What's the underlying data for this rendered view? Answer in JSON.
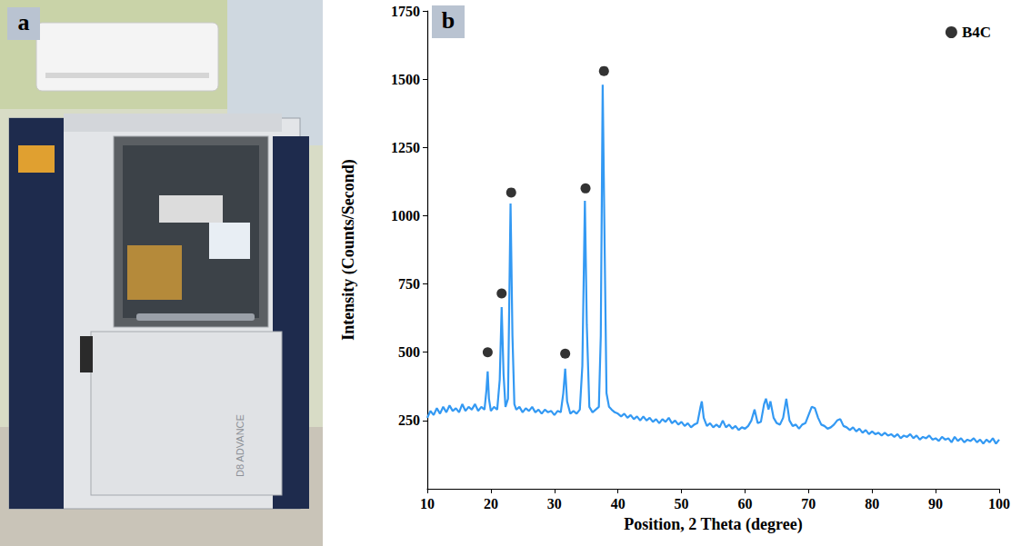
{
  "panels": [
    {
      "label": "a",
      "photo_text": "D8 ADVANCE"
    },
    {
      "label": "b"
    }
  ],
  "chart_data": {
    "type": "line",
    "x_label": "Position, 2 Theta (degree)",
    "y_label": "Intensity (Counts/Second)",
    "xlim": [
      10,
      100
    ],
    "xticks": [
      10,
      20,
      30,
      40,
      50,
      60,
      70,
      80,
      90,
      100
    ],
    "ylim": [
      0,
      1750
    ],
    "yticks": [
      250,
      500,
      750,
      1000,
      1250,
      1500,
      1750
    ],
    "grid": false,
    "legend": "upper right",
    "series": [
      {
        "type": "line",
        "color": "#3399f3",
        "line_style": "solid",
        "x": [
          10,
          10.5,
          11,
          11.5,
          12,
          12.5,
          13,
          13.5,
          14,
          14.5,
          15,
          15.5,
          16,
          16.5,
          17,
          17.5,
          18,
          18.5,
          19,
          19.3,
          19.5,
          19.7,
          20,
          20.5,
          21,
          21.4,
          21.7,
          22,
          22.3,
          22.7,
          23.1,
          23.4,
          23.7,
          24,
          24.5,
          25,
          25.5,
          26,
          26.5,
          27,
          27.5,
          28,
          28.5,
          29,
          29.5,
          30,
          30.5,
          31,
          31.4,
          31.7,
          32,
          32.5,
          33,
          33.5,
          34,
          34.4,
          34.8,
          35.1,
          35.5,
          36,
          36.5,
          37,
          37.3,
          37.6,
          37.9,
          38.2,
          38.6,
          39,
          39.5,
          40,
          40.5,
          41,
          41.5,
          42,
          42.5,
          43,
          43.5,
          44,
          44.5,
          45,
          45.5,
          46,
          46.5,
          47,
          47.5,
          48,
          48.5,
          49,
          49.5,
          50,
          50.5,
          51,
          51.5,
          52,
          52.5,
          53,
          53.2,
          53.5,
          54,
          54.5,
          55,
          55.5,
          56,
          56.5,
          57,
          57.5,
          58,
          58.5,
          59,
          59.5,
          60,
          60.5,
          61,
          61.5,
          62,
          62.5,
          63,
          63.3,
          63.7,
          64,
          64.5,
          65,
          65.5,
          66,
          66.5,
          67,
          67.5,
          68,
          68.5,
          69,
          69.5,
          70,
          70.5,
          71,
          71.5,
          72,
          72.5,
          73,
          73.5,
          74,
          74.5,
          75,
          75.5,
          76,
          76.5,
          77,
          77.5,
          78,
          78.5,
          79,
          79.5,
          80,
          80.5,
          81,
          81.5,
          82,
          82.5,
          83,
          83.5,
          84,
          84.5,
          85,
          85.5,
          86,
          86.5,
          87,
          87.5,
          88,
          88.5,
          89,
          89.5,
          90,
          90.5,
          91,
          91.5,
          92,
          92.5,
          93,
          93.5,
          94,
          94.5,
          95,
          95.5,
          96,
          96.5,
          97,
          97.5,
          98,
          98.5,
          99,
          99.5,
          100
        ],
        "values": [
          260,
          285,
          270,
          295,
          275,
          300,
          280,
          305,
          285,
          295,
          280,
          310,
          285,
          300,
          290,
          310,
          285,
          300,
          290,
          360,
          430,
          330,
          285,
          300,
          290,
          400,
          665,
          420,
          300,
          330,
          1045,
          560,
          310,
          290,
          300,
          280,
          295,
          285,
          300,
          280,
          290,
          275,
          290,
          280,
          285,
          270,
          285,
          280,
          350,
          440,
          320,
          275,
          285,
          275,
          290,
          450,
          1055,
          600,
          300,
          280,
          290,
          300,
          560,
          1480,
          900,
          350,
          300,
          290,
          280,
          275,
          265,
          275,
          260,
          270,
          255,
          265,
          250,
          265,
          250,
          260,
          245,
          255,
          240,
          255,
          245,
          260,
          240,
          250,
          235,
          245,
          230,
          240,
          225,
          235,
          240,
          300,
          320,
          260,
          230,
          240,
          225,
          235,
          225,
          250,
          225,
          235,
          220,
          230,
          215,
          225,
          220,
          230,
          250,
          290,
          240,
          245,
          310,
          330,
          290,
          320,
          260,
          240,
          235,
          260,
          330,
          250,
          230,
          235,
          220,
          235,
          240,
          270,
          300,
          295,
          260,
          235,
          230,
          220,
          225,
          235,
          250,
          255,
          230,
          225,
          215,
          225,
          210,
          220,
          205,
          215,
          200,
          210,
          200,
          205,
          195,
          205,
          195,
          200,
          190,
          200,
          185,
          195,
          190,
          200,
          185,
          195,
          180,
          190,
          185,
          195,
          180,
          185,
          175,
          190,
          180,
          185,
          170,
          190,
          175,
          185,
          170,
          180,
          175,
          185,
          170,
          180,
          165,
          180,
          170,
          185,
          165,
          180
        ]
      },
      {
        "name": "B4C",
        "type": "scatter",
        "color": "#000000",
        "marker": "circle",
        "x": [
          19.5,
          21.7,
          23.2,
          31.7,
          34.9,
          37.8
        ],
        "values": [
          500,
          715,
          1085,
          495,
          1100,
          1530
        ]
      }
    ]
  }
}
